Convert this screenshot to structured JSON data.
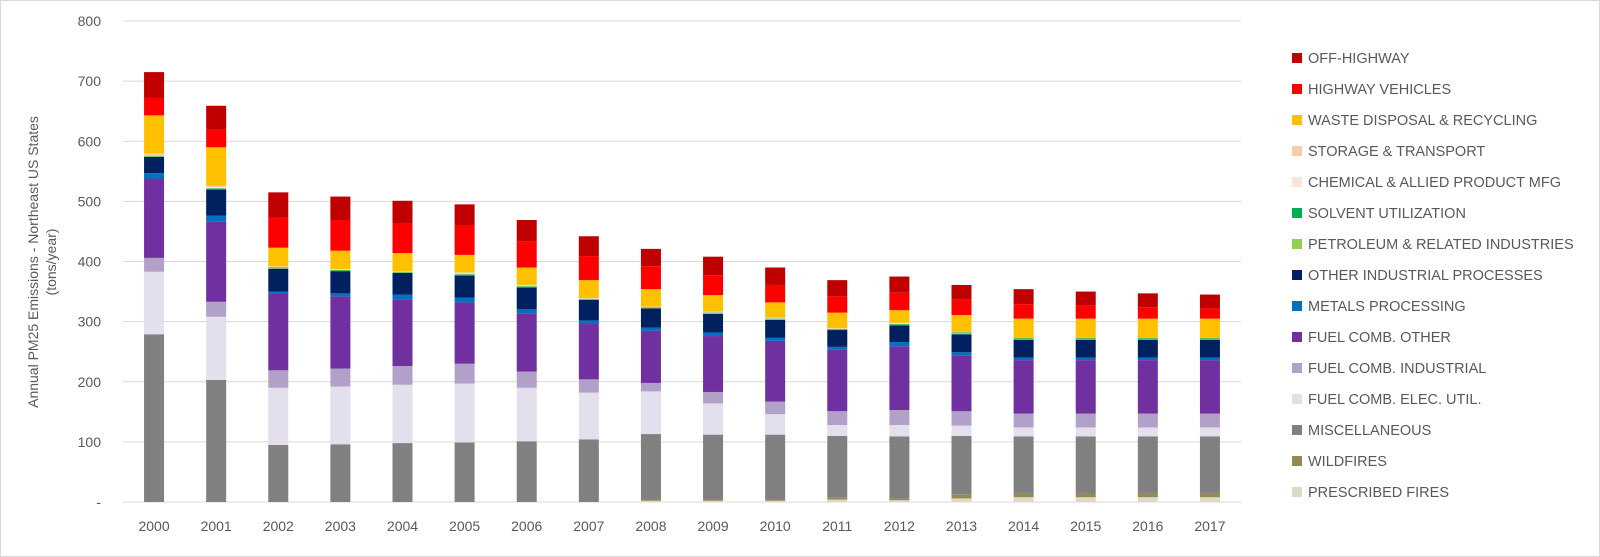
{
  "chart_data": {
    "type": "bar",
    "stacked": true,
    "title": "",
    "xlabel": "",
    "ylabel": "Annual PM25 Emissions - Northeast US States",
    "ylabel_line2": "(tons/year)",
    "ylim": [
      0,
      800
    ],
    "yticks": [
      0,
      100,
      200,
      300,
      400,
      500,
      600,
      700,
      800
    ],
    "ytick_labels": [
      "-",
      "100",
      "200",
      "300",
      "400",
      "500",
      "600",
      "700",
      "800"
    ],
    "grid": true,
    "legend_position": "right",
    "categories": [
      "2000",
      "2001",
      "2002",
      "2003",
      "2004",
      "2005",
      "2006",
      "2007",
      "2008",
      "2009",
      "2010",
      "2011",
      "2012",
      "2013",
      "2014",
      "2015",
      "2016",
      "2017"
    ],
    "series": [
      {
        "name": "PRESCRIBED FIRES",
        "color": "#DDD9C4",
        "values": [
          0,
          0,
          0,
          0,
          0,
          0,
          0,
          0,
          2,
          2,
          2,
          4,
          3,
          6,
          8,
          8,
          8,
          8
        ]
      },
      {
        "name": "WILDFIRES",
        "color": "#948A54",
        "values": [
          0,
          0,
          0,
          0,
          0,
          0,
          0,
          0,
          3,
          3,
          3,
          4,
          3,
          7,
          7,
          7,
          7,
          7
        ]
      },
      {
        "name": "MISCELLANEOUS",
        "color": "#808080",
        "values": [
          279,
          203,
          95,
          96,
          98,
          99,
          101,
          104,
          108,
          107,
          107,
          102,
          103,
          97,
          94,
          94,
          94,
          94
        ]
      },
      {
        "name": "FUEL COMB. ELEC. UTIL.",
        "color": "#E4DFEC",
        "values": [
          104,
          105,
          95,
          96,
          97,
          98,
          89,
          78,
          71,
          52,
          34,
          18,
          19,
          17,
          15,
          15,
          15,
          15
        ]
      },
      {
        "name": "FUEL COMB. INDUSTRIAL",
        "color": "#B1A0C7",
        "values": [
          23,
          25,
          29,
          30,
          31,
          33,
          27,
          22,
          14,
          19,
          21,
          23,
          25,
          24,
          23,
          23,
          23,
          23
        ]
      },
      {
        "name": "FUEL COMB. OTHER",
        "color": "#7030A0",
        "values": [
          132,
          133,
          127,
          120,
          111,
          102,
          97,
          92,
          87,
          93,
          101,
          102,
          106,
          93,
          89,
          89,
          89,
          89
        ]
      },
      {
        "name": "METALS PROCESSING",
        "color": "#0070C0",
        "values": [
          9,
          10,
          4,
          5,
          8,
          8,
          7,
          6,
          5,
          6,
          5,
          5,
          7,
          5,
          4,
          4,
          4,
          4
        ]
      },
      {
        "name": "OTHER INDUSTRIAL PROCESSES",
        "color": "#002060",
        "values": [
          27,
          44,
          38,
          37,
          36,
          37,
          36,
          34,
          32,
          31,
          30,
          28,
          28,
          30,
          30,
          30,
          30,
          30
        ]
      },
      {
        "name": "PETROLEUM & RELATED INDUSTRIES",
        "color": "#92D050",
        "values": [
          1,
          1,
          1,
          1,
          1,
          1,
          1,
          1,
          1,
          1,
          1,
          1,
          1,
          2,
          2,
          2,
          2,
          2
        ]
      },
      {
        "name": "SOLVENT UTILIZATION",
        "color": "#00B050",
        "values": [
          1,
          1,
          1,
          1,
          1,
          1,
          1,
          1,
          1,
          1,
          1,
          1,
          1,
          1,
          1,
          1,
          1,
          1
        ]
      },
      {
        "name": "CHEMICAL & ALLIED PRODUCT MFG",
        "color": "#FBE5D6",
        "values": [
          1,
          2,
          0.5,
          0.5,
          0.5,
          1,
          1,
          0.5,
          0.5,
          1,
          1,
          0.5,
          1,
          0.5,
          0,
          0,
          0,
          0
        ]
      },
      {
        "name": "STORAGE & TRANSPORT",
        "color": "#F8CBAD",
        "values": [
          3,
          2,
          1.5,
          0.5,
          0.5,
          2,
          1,
          0.5,
          0.5,
          1,
          1,
          0.5,
          1,
          0.5,
          0,
          0,
          0,
          0
        ]
      },
      {
        "name": "WASTE DISPOSAL & RECYCLING",
        "color": "#FFC000",
        "values": [
          63,
          64,
          31,
          31,
          30,
          29,
          29,
          30,
          29,
          27,
          25,
          26,
          21,
          28,
          32,
          32,
          32,
          32
        ]
      },
      {
        "name": "HIGHWAY VEHICLES",
        "color": "#FF0000",
        "values": [
          29,
          29,
          51,
          51,
          50,
          49,
          44,
          40,
          38,
          33,
          29,
          27,
          29,
          26,
          24,
          22,
          19,
          17
        ]
      },
      {
        "name": "OFF-HIGHWAY",
        "color": "#C00000",
        "values": [
          43,
          40,
          41,
          39,
          37,
          35,
          35,
          33,
          29,
          31,
          29,
          27,
          27,
          24,
          25,
          23,
          23,
          23
        ]
      }
    ]
  }
}
